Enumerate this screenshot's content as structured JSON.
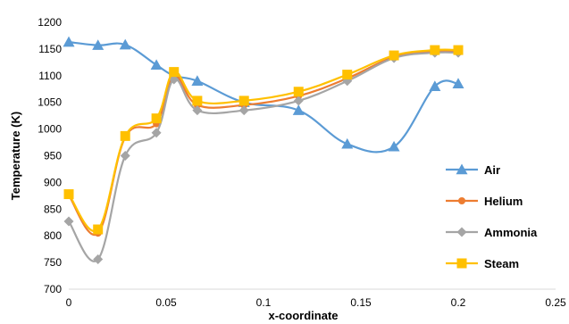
{
  "chart_data": {
    "type": "line",
    "title": "",
    "xlabel": "x-coordinate",
    "ylabel": "Temperature (K)",
    "xlim": [
      0,
      0.25
    ],
    "ylim": [
      700,
      1200
    ],
    "xticks": [
      0,
      0.05,
      0.1,
      0.15,
      0.2,
      0.25
    ],
    "xtick_labels": [
      "0",
      "0.05",
      "0.1",
      "0.15",
      "0.2",
      "0.25"
    ],
    "yticks": [
      700,
      750,
      800,
      850,
      900,
      950,
      1000,
      1050,
      1100,
      1150,
      1200
    ],
    "ytick_labels": [
      "700",
      "750",
      "800",
      "850",
      "900",
      "950",
      "1000",
      "1050",
      "1100",
      "1150",
      "1200"
    ],
    "grid": false,
    "legend_position": "right",
    "series": [
      {
        "name": "Air",
        "color": "#5B9BD5",
        "marker": "triangle",
        "x": [
          0,
          0.015,
          0.029,
          0.045,
          0.054,
          0.066,
          0.09,
          0.118,
          0.143,
          0.167,
          0.188,
          0.2
        ],
        "y": [
          1163,
          1157,
          1158,
          1120,
          1100,
          1090,
          1050,
          1035,
          972,
          967,
          1080,
          1085
        ]
      },
      {
        "name": "Helium",
        "color": "#ED7D31",
        "marker": "circle",
        "x": [
          0,
          0.015,
          0.029,
          0.045,
          0.054,
          0.066,
          0.09,
          0.118,
          0.143,
          0.167,
          0.188,
          0.2
        ],
        "y": [
          876,
          805,
          985,
          1010,
          1100,
          1045,
          1045,
          1062,
          1095,
          1135,
          1145,
          1145
        ]
      },
      {
        "name": "Ammonia",
        "color": "#A5A5A5",
        "marker": "diamond",
        "x": [
          0,
          0.015,
          0.029,
          0.045,
          0.054,
          0.066,
          0.09,
          0.118,
          0.143,
          0.167,
          0.188,
          0.2
        ],
        "y": [
          827,
          756,
          950,
          993,
          1093,
          1035,
          1035,
          1053,
          1090,
          1133,
          1143,
          1143
        ]
      },
      {
        "name": "Steam",
        "color": "#FFC000",
        "marker": "square",
        "x": [
          0,
          0.015,
          0.029,
          0.045,
          0.054,
          0.066,
          0.09,
          0.118,
          0.143,
          0.167,
          0.188,
          0.2
        ],
        "y": [
          878,
          812,
          987,
          1020,
          1107,
          1053,
          1053,
          1070,
          1102,
          1138,
          1148,
          1148
        ]
      }
    ]
  }
}
